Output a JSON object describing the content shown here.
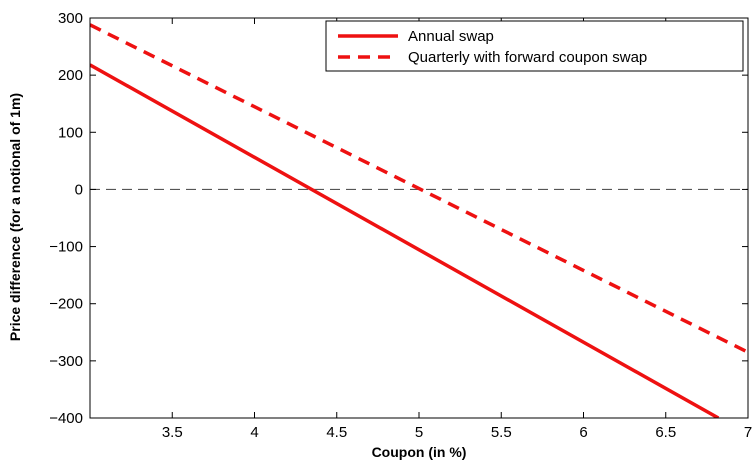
{
  "chart_data": {
    "type": "line",
    "xlabel": "Coupon (in %)",
    "ylabel": "Price difference (for a notional of 1m)",
    "xlim": [
      3.0,
      7.0
    ],
    "ylim": [
      -400,
      300
    ],
    "xticks": [
      3.5,
      4,
      4.5,
      5,
      5.5,
      6,
      6.5,
      7
    ],
    "xtick_labels": [
      "3.5",
      "4",
      "4.5",
      "5",
      "5.5",
      "6",
      "6.5",
      "7"
    ],
    "yticks": [
      -400,
      -300,
      -200,
      -100,
      0,
      100,
      200,
      300
    ],
    "ytick_labels": [
      "−400",
      "−300",
      "−200",
      "−100",
      "0",
      "100",
      "200",
      "300"
    ],
    "grid": false,
    "zero_line": true,
    "legend_position": "top-right",
    "series": [
      {
        "name": "Annual swap",
        "style": "solid",
        "color": "#ee1111",
        "x": [
          3.0,
          6.82
        ],
        "y": [
          218,
          -400
        ]
      },
      {
        "name": "Quarterly with forward coupon swap",
        "style": "dashed",
        "color": "#ee1111",
        "x": [
          3.0,
          7.0
        ],
        "y": [
          288,
          -285
        ]
      }
    ]
  }
}
